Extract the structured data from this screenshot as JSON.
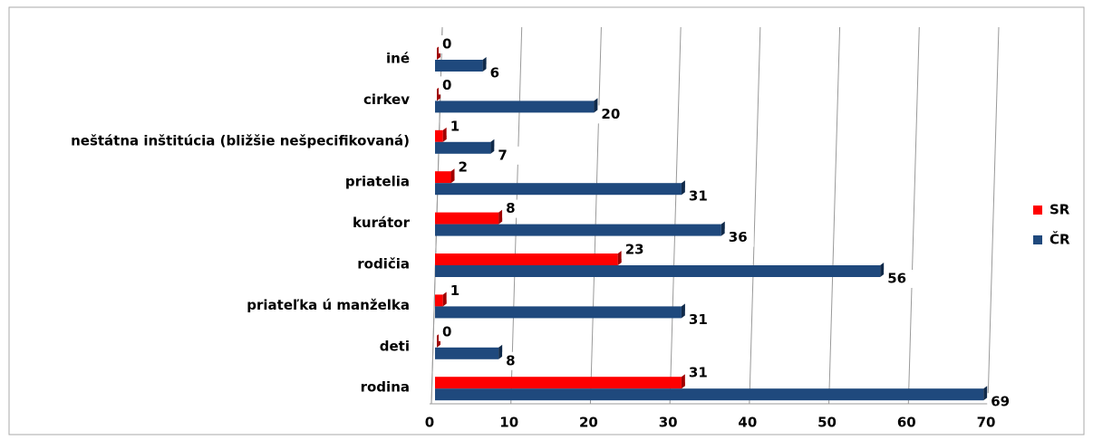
{
  "chart_data": {
    "type": "hbar",
    "categories": [
      "iné",
      "cirkev",
      "neštátna inštitúcia (bližšie nešpecifikovaná)",
      "priatelia",
      "kurátor",
      "rodičia",
      "priateľka ú manželka",
      "deti",
      "rodina"
    ],
    "series": [
      {
        "name": "SR",
        "color": "#ff0000",
        "values": [
          0,
          0,
          1,
          2,
          8,
          23,
          1,
          0,
          31
        ]
      },
      {
        "name": "ČR",
        "color": "#1f497d",
        "values": [
          6,
          20,
          7,
          31,
          36,
          56,
          31,
          8,
          69
        ]
      }
    ],
    "xlim": [
      0,
      70
    ],
    "xticks": [
      0,
      10,
      20,
      30,
      40,
      50,
      60,
      70
    ],
    "grid": true,
    "legend": "right"
  }
}
